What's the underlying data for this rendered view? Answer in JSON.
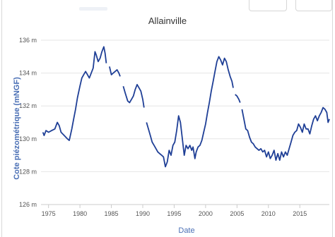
{
  "chart_data": {
    "type": "line",
    "title": "Allainville",
    "xlabel": "Date",
    "ylabel": "Cote piézométrique (mNGF)",
    "x_ticks": [
      1975,
      1980,
      1985,
      1990,
      1995,
      2000,
      2005,
      2010,
      2015
    ],
    "y_ticks": [
      126,
      128,
      130,
      132,
      134,
      136
    ],
    "y_tick_labels": [
      "126 m",
      "128 m",
      "130 m",
      "132 m",
      "134 m",
      "136 m"
    ],
    "xlim": [
      1973.8,
      2019.7
    ],
    "ylim": [
      126,
      136
    ],
    "grid": true,
    "legend": "none",
    "line_color": "#1f3f96",
    "series": [
      {
        "segments": [
          [
            [
              1974.1,
              130.4
            ],
            [
              1974.3,
              130.2
            ],
            [
              1974.6,
              130.5
            ],
            [
              1975.0,
              130.4
            ],
            [
              1975.5,
              130.5
            ],
            [
              1976.0,
              130.6
            ],
            [
              1976.4,
              131.0
            ],
            [
              1976.7,
              130.8
            ],
            [
              1977.0,
              130.4
            ],
            [
              1977.5,
              130.2
            ],
            [
              1978.0,
              130.0
            ],
            [
              1978.3,
              129.9
            ],
            [
              1978.7,
              130.6
            ],
            [
              1979.0,
              131.2
            ],
            [
              1979.3,
              131.8
            ],
            [
              1979.6,
              132.5
            ],
            [
              1980.0,
              133.2
            ],
            [
              1980.3,
              133.7
            ],
            [
              1980.6,
              133.9
            ],
            [
              1980.9,
              134.1
            ],
            [
              1981.2,
              133.9
            ],
            [
              1981.5,
              133.7
            ],
            [
              1981.8,
              134.0
            ],
            [
              1982.1,
              134.3
            ],
            [
              1982.4,
              135.3
            ],
            [
              1982.6,
              135.1
            ],
            [
              1982.9,
              134.7
            ],
            [
              1983.2,
              134.9
            ],
            [
              1983.5,
              135.3
            ],
            [
              1983.8,
              135.6
            ],
            [
              1984.0,
              135.2
            ],
            [
              1984.2,
              134.6
            ]
          ],
          [
            [
              1984.7,
              134.4
            ],
            [
              1985.0,
              133.9
            ],
            [
              1985.3,
              134.0
            ],
            [
              1985.6,
              134.1
            ],
            [
              1985.9,
              134.2
            ],
            [
              1986.2,
              134.0
            ],
            [
              1986.4,
              133.8
            ]
          ],
          [
            [
              1986.9,
              133.2
            ],
            [
              1987.2,
              132.8
            ],
            [
              1987.6,
              132.3
            ],
            [
              1987.9,
              132.2
            ],
            [
              1988.2,
              132.4
            ],
            [
              1988.5,
              132.6
            ],
            [
              1988.8,
              133.0
            ],
            [
              1989.1,
              133.3
            ],
            [
              1989.4,
              133.1
            ],
            [
              1989.7,
              132.9
            ],
            [
              1990.0,
              132.4
            ],
            [
              1990.2,
              131.9
            ]
          ],
          [
            [
              1990.6,
              131.0
            ],
            [
              1990.9,
              130.6
            ],
            [
              1991.2,
              130.2
            ],
            [
              1991.5,
              129.8
            ],
            [
              1991.8,
              129.6
            ],
            [
              1992.1,
              129.4
            ],
            [
              1992.4,
              129.2
            ],
            [
              1992.7,
              129.1
            ],
            [
              1993.0,
              129.0
            ],
            [
              1993.3,
              128.9
            ],
            [
              1993.6,
              128.3
            ],
            [
              1993.9,
              128.6
            ],
            [
              1994.2,
              129.3
            ],
            [
              1994.5,
              129.0
            ],
            [
              1994.8,
              129.6
            ],
            [
              1995.1,
              129.8
            ],
            [
              1995.4,
              130.5
            ],
            [
              1995.7,
              131.4
            ],
            [
              1996.0,
              131.0
            ],
            [
              1996.3,
              130.0
            ],
            [
              1996.6,
              129.0
            ],
            [
              1996.9,
              129.6
            ],
            [
              1997.2,
              129.4
            ],
            [
              1997.5,
              129.6
            ],
            [
              1997.8,
              129.3
            ],
            [
              1998.0,
              129.5
            ],
            [
              1998.3,
              128.8
            ],
            [
              1998.5,
              129.2
            ],
            [
              1998.8,
              129.5
            ],
            [
              1999.1,
              129.6
            ],
            [
              1999.4,
              129.9
            ],
            [
              1999.7,
              130.4
            ],
            [
              2000.0,
              130.9
            ],
            [
              2000.3,
              131.6
            ],
            [
              2000.6,
              132.2
            ],
            [
              2000.9,
              132.9
            ],
            [
              2001.2,
              133.5
            ],
            [
              2001.5,
              134.1
            ],
            [
              2001.8,
              134.7
            ],
            [
              2002.1,
              135.0
            ],
            [
              2002.4,
              134.8
            ],
            [
              2002.7,
              134.5
            ],
            [
              2003.0,
              134.9
            ],
            [
              2003.3,
              134.7
            ],
            [
              2003.6,
              134.2
            ],
            [
              2003.9,
              133.8
            ],
            [
              2004.2,
              133.5
            ],
            [
              2004.4,
              133.1
            ]
          ],
          [
            [
              2004.7,
              132.7
            ],
            [
              2005.0,
              132.6
            ],
            [
              2005.3,
              132.4
            ],
            [
              2005.5,
              132.2
            ]
          ],
          [
            [
              2005.8,
              131.8
            ],
            [
              2006.1,
              131.2
            ],
            [
              2006.4,
              130.6
            ],
            [
              2006.7,
              130.5
            ],
            [
              2007.0,
              130.1
            ],
            [
              2007.3,
              129.8
            ],
            [
              2007.6,
              129.7
            ],
            [
              2007.9,
              129.5
            ],
            [
              2008.2,
              129.4
            ],
            [
              2008.5,
              129.3
            ],
            [
              2008.8,
              129.4
            ],
            [
              2009.1,
              129.2
            ],
            [
              2009.4,
              129.3
            ],
            [
              2009.7,
              128.9
            ],
            [
              2010.0,
              129.2
            ],
            [
              2010.3,
              128.8
            ],
            [
              2010.6,
              129.0
            ],
            [
              2010.9,
              129.3
            ],
            [
              2011.2,
              128.7
            ],
            [
              2011.5,
              129.1
            ],
            [
              2011.8,
              128.7
            ],
            [
              2012.1,
              129.2
            ],
            [
              2012.4,
              128.9
            ],
            [
              2012.7,
              129.2
            ],
            [
              2013.0,
              129.0
            ],
            [
              2013.3,
              129.4
            ],
            [
              2013.6,
              129.8
            ],
            [
              2013.9,
              130.2
            ],
            [
              2014.2,
              130.4
            ],
            [
              2014.5,
              130.5
            ],
            [
              2014.8,
              130.9
            ],
            [
              2015.1,
              130.7
            ],
            [
              2015.4,
              130.4
            ],
            [
              2015.7,
              130.9
            ],
            [
              2016.0,
              130.6
            ],
            [
              2016.3,
              130.6
            ],
            [
              2016.6,
              130.3
            ],
            [
              2016.9,
              130.8
            ],
            [
              2017.2,
              131.2
            ],
            [
              2017.5,
              131.4
            ],
            [
              2017.8,
              131.1
            ],
            [
              2018.1,
              131.4
            ],
            [
              2018.4,
              131.6
            ],
            [
              2018.7,
              131.9
            ],
            [
              2019.0,
              131.8
            ],
            [
              2019.3,
              131.6
            ],
            [
              2019.5,
              131.0
            ],
            [
              2019.7,
              131.2
            ]
          ]
        ]
      }
    ]
  }
}
